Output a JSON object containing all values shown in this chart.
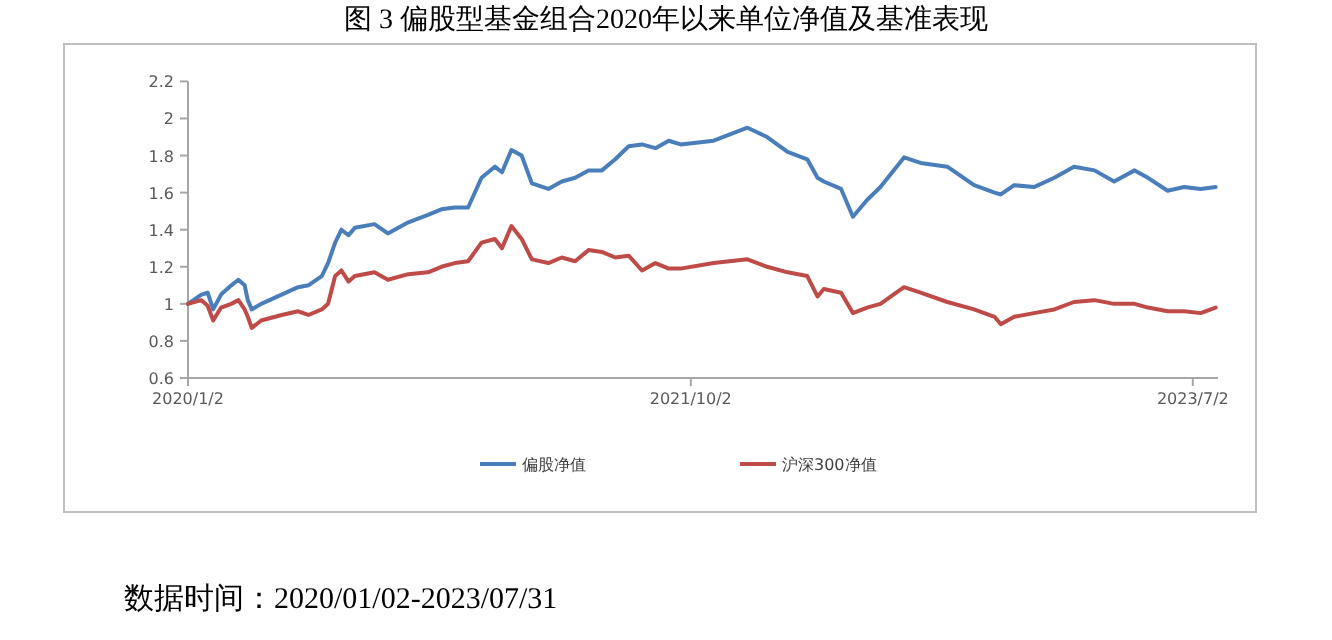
{
  "chart_data": {
    "type": "line",
    "title": "图 3 偏股型基金组合2020年以来单位净值及基准表现",
    "x": [
      "2020-01-02",
      "2020-01-19",
      "2020-01-27",
      "2020-02-03",
      "2020-02-13",
      "2020-02-26",
      "2020-03-06",
      "2020-03-14",
      "2020-03-18",
      "2020-03-23",
      "2020-04-04",
      "2020-04-30",
      "2020-05-21",
      "2020-06-03",
      "2020-06-20",
      "2020-06-28",
      "2020-07-07",
      "2020-07-15",
      "2020-07-24",
      "2020-08-01",
      "2020-08-26",
      "2020-09-12",
      "2020-10-08",
      "2020-11-02",
      "2020-11-19",
      "2020-12-06",
      "2020-12-23",
      "2021-01-09",
      "2021-01-26",
      "2021-02-04",
      "2021-02-16",
      "2021-03-01",
      "2021-03-14",
      "2021-04-04",
      "2021-04-21",
      "2021-05-08",
      "2021-05-25",
      "2021-06-11",
      "2021-06-28",
      "2021-07-15",
      "2021-08-01",
      "2021-08-18",
      "2021-09-04",
      "2021-09-19",
      "2021-10-31",
      "2021-12-13",
      "2022-01-07",
      "2022-02-02",
      "2022-02-27",
      "2022-03-12",
      "2022-03-20",
      "2022-04-11",
      "2022-04-26",
      "2022-05-14",
      "2022-05-31",
      "2022-06-30",
      "2022-07-21",
      "2022-08-24",
      "2022-09-27",
      "2022-10-23",
      "2022-10-31",
      "2022-11-17",
      "2022-12-12",
      "2023-01-07",
      "2023-02-01",
      "2023-02-27",
      "2023-03-24",
      "2023-04-19",
      "2023-05-06",
      "2023-05-31",
      "2023-06-21",
      "2023-07-12",
      "2023-07-31"
    ],
    "series": [
      {
        "name": "偏股净值",
        "color": "#4a7ebb",
        "values": [
          1.0,
          1.05,
          1.06,
          0.97,
          1.05,
          1.1,
          1.13,
          1.1,
          1.02,
          0.97,
          1.0,
          1.05,
          1.09,
          1.1,
          1.15,
          1.22,
          1.33,
          1.4,
          1.37,
          1.41,
          1.43,
          1.38,
          1.44,
          1.48,
          1.51,
          1.52,
          1.52,
          1.68,
          1.74,
          1.71,
          1.83,
          1.8,
          1.65,
          1.62,
          1.66,
          1.68,
          1.72,
          1.72,
          1.78,
          1.85,
          1.86,
          1.84,
          1.88,
          1.86,
          1.88,
          1.95,
          1.9,
          1.82,
          1.78,
          1.68,
          1.66,
          1.62,
          1.47,
          1.56,
          1.63,
          1.79,
          1.76,
          1.74,
          1.64,
          1.6,
          1.59,
          1.64,
          1.63,
          1.68,
          1.74,
          1.72,
          1.66,
          1.72,
          1.68,
          1.61,
          1.63,
          1.62,
          1.63
        ]
      },
      {
        "name": "沪深300净值",
        "color": "#be4b48",
        "values": [
          1.0,
          1.02,
          0.99,
          0.91,
          0.98,
          1.0,
          1.02,
          0.97,
          0.93,
          0.87,
          0.91,
          0.94,
          0.96,
          0.94,
          0.97,
          1.0,
          1.15,
          1.18,
          1.12,
          1.15,
          1.17,
          1.13,
          1.16,
          1.17,
          1.2,
          1.22,
          1.23,
          1.33,
          1.35,
          1.3,
          1.42,
          1.35,
          1.24,
          1.22,
          1.25,
          1.23,
          1.29,
          1.28,
          1.25,
          1.26,
          1.18,
          1.22,
          1.19,
          1.19,
          1.22,
          1.24,
          1.2,
          1.17,
          1.15,
          1.04,
          1.08,
          1.06,
          0.95,
          0.98,
          1.0,
          1.09,
          1.06,
          1.01,
          0.97,
          0.93,
          0.89,
          0.93,
          0.95,
          0.97,
          1.01,
          1.02,
          1.0,
          1.0,
          0.98,
          0.96,
          0.96,
          0.95,
          0.98
        ]
      }
    ],
    "xlim": [
      "2020-01-02",
      "2023-08-03"
    ],
    "xticks": [
      {
        "value": "2020-01-02",
        "label": "2020/1/2"
      },
      {
        "value": "2021-10-02",
        "label": "2021/10/2"
      },
      {
        "value": "2023-07-02",
        "label": "2023/7/2"
      }
    ],
    "ylim": [
      0.6,
      2.2
    ],
    "yticks": [
      0.6,
      0.8,
      1,
      1.2,
      1.4,
      1.6,
      1.8,
      2,
      2.2
    ],
    "grid": false,
    "legend": "bottom",
    "marker": "none",
    "line_style": "solid",
    "annotations": [
      "数据时间：2020/01/02-2023/07/31"
    ]
  }
}
